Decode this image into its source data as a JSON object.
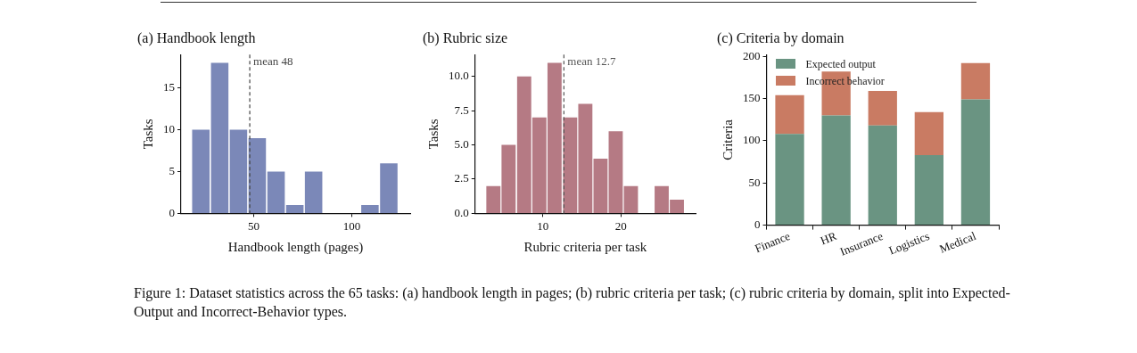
{
  "chart_data": [
    {
      "type": "histogram",
      "title": "(a) Handbook length",
      "xlabel": "Handbook length (pages)",
      "ylabel": "Tasks",
      "bins": [
        18.3,
        27.9,
        37.5,
        47.0,
        56.6,
        66.2,
        75.7,
        85.3,
        94.9,
        104.4,
        114.0,
        123.6
      ],
      "values": [
        10,
        18,
        10,
        9,
        5,
        1,
        5,
        0,
        0,
        1,
        6
      ],
      "color": "#7b88b8",
      "xlim": [
        13,
        129.7
      ],
      "xticks": [
        50,
        100
      ],
      "ylim": [
        0,
        19
      ],
      "yticks": [
        0,
        5,
        10,
        15
      ],
      "grid": false,
      "legend": false,
      "ref_lines": [
        {
          "axis": "x",
          "value": 48,
          "label": "mean 48",
          "color": "#444444",
          "line_style": "dashed"
        }
      ],
      "annotations": [
        "Figure 1: Dataset statistics across the 65 tasks: (a) handbook length in pages; (b) rubric criteria per task; (c) rubric criteria by domain, split into Expected-Output and Incorrect-Behavior types."
      ]
    },
    {
      "type": "histogram",
      "title": "(b) Rubric size",
      "xlabel": "Rubric criteria per task",
      "ylabel": "Tasks",
      "bins": [
        2.7,
        4.6,
        6.6,
        8.6,
        10.5,
        12.5,
        14.5,
        16.4,
        18.4,
        20.3,
        22.3,
        24.3,
        26.2,
        28.2
      ],
      "values": [
        2,
        5,
        10,
        7,
        11,
        7,
        8,
        4,
        6,
        2,
        0,
        2,
        1
      ],
      "color": "#b57a84",
      "xlim": [
        1.3,
        29.6
      ],
      "xticks": [
        10,
        20
      ],
      "ylim": [
        0,
        11.6
      ],
      "yticks": [
        {
          "value": 0,
          "label": "0.0"
        },
        {
          "value": 2.5,
          "label": "2.5"
        },
        {
          "value": 5,
          "label": "5.0"
        },
        {
          "value": 7.5,
          "label": "7.5"
        },
        {
          "value": 10,
          "label": "10.0"
        }
      ],
      "grid": false,
      "legend": false,
      "ref_lines": [
        {
          "axis": "x",
          "value": 12.7,
          "label": "mean 12.7",
          "color": "#555555",
          "line_style": "dashed"
        }
      ]
    },
    {
      "type": "bar",
      "title": "(c) Criteria by domain",
      "ylabel": "Criteria",
      "stacked": true,
      "categories": [
        "Finance",
        "HR",
        "Insurance",
        "Logistics",
        "Medical"
      ],
      "series": [
        {
          "name": "Expected output",
          "color": "#6a9482",
          "values": [
            108,
            130,
            118,
            83,
            149
          ]
        },
        {
          "name": "Incorrect behavior",
          "color": "#c97b63",
          "values": [
            46,
            52,
            41,
            51,
            43
          ]
        }
      ],
      "ylim": [
        0,
        202
      ],
      "yticks": [
        0,
        50,
        100,
        150,
        200
      ],
      "grid": false,
      "legend": "top left"
    }
  ]
}
